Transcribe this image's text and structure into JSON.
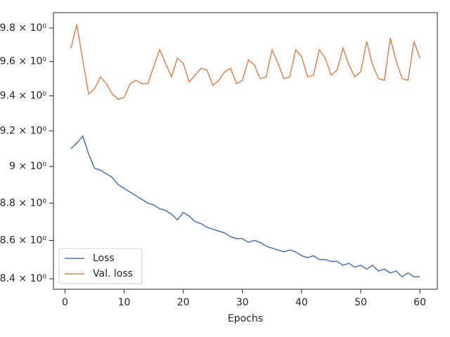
{
  "chart_data": {
    "type": "line",
    "x_label": "Epochs",
    "x": [
      1,
      2,
      3,
      4,
      5,
      6,
      7,
      8,
      9,
      10,
      11,
      12,
      13,
      14,
      15,
      16,
      17,
      18,
      19,
      20,
      21,
      22,
      23,
      24,
      25,
      26,
      27,
      28,
      29,
      30,
      31,
      32,
      33,
      34,
      35,
      36,
      37,
      38,
      39,
      40,
      41,
      42,
      43,
      44,
      45,
      46,
      47,
      48,
      49,
      50,
      51,
      52,
      53,
      54,
      55,
      56,
      57,
      58,
      59,
      60
    ],
    "series": [
      {
        "name": "Loss",
        "color": "#4c72b0",
        "values": [
          9.1,
          9.13,
          9.17,
          9.07,
          8.99,
          8.98,
          8.96,
          8.94,
          8.9,
          8.88,
          8.86,
          8.84,
          8.82,
          8.8,
          8.79,
          8.77,
          8.76,
          8.74,
          8.71,
          8.75,
          8.73,
          8.7,
          8.69,
          8.67,
          8.66,
          8.65,
          8.64,
          8.62,
          8.61,
          8.61,
          8.59,
          8.6,
          8.59,
          8.57,
          8.56,
          8.55,
          8.54,
          8.55,
          8.54,
          8.52,
          8.51,
          8.52,
          8.5,
          8.5,
          8.49,
          8.49,
          8.47,
          8.48,
          8.46,
          8.47,
          8.45,
          8.47,
          8.44,
          8.45,
          8.43,
          8.44,
          8.41,
          8.43,
          8.41,
          8.41
        ]
      },
      {
        "name": "Val. loss",
        "color": "#dd8452",
        "values": [
          9.68,
          9.82,
          9.61,
          9.41,
          9.44,
          9.51,
          9.47,
          9.41,
          9.38,
          9.39,
          9.47,
          9.49,
          9.47,
          9.47,
          9.57,
          9.67,
          9.59,
          9.51,
          9.62,
          9.59,
          9.48,
          9.52,
          9.56,
          9.55,
          9.46,
          9.49,
          9.54,
          9.56,
          9.47,
          9.49,
          9.61,
          9.58,
          9.5,
          9.51,
          9.67,
          9.59,
          9.5,
          9.51,
          9.67,
          9.63,
          9.51,
          9.52,
          9.67,
          9.62,
          9.52,
          9.55,
          9.68,
          9.58,
          9.51,
          9.54,
          9.72,
          9.58,
          9.5,
          9.49,
          9.74,
          9.6,
          9.5,
          9.49,
          9.72,
          9.62
        ]
      }
    ],
    "xlim": [
      -1.95,
      62.95
    ],
    "xticks": [
      0,
      10,
      20,
      30,
      40,
      50,
      60
    ],
    "ylim": [
      8.346,
      9.893
    ],
    "y_scale": "log",
    "yticks": [
      {
        "value": 8.4,
        "label": "8.4 × 10⁰"
      },
      {
        "value": 8.6,
        "label": "8.6 × 10⁰"
      },
      {
        "value": 8.8,
        "label": "8.8 × 10⁰"
      },
      {
        "value": 9,
        "label": "9 × 10⁰"
      },
      {
        "value": 9.2,
        "label": "9.2 × 10⁰"
      },
      {
        "value": 9.4,
        "label": "9.4 × 10⁰"
      },
      {
        "value": 9.6,
        "label": "9.6 × 10⁰"
      },
      {
        "value": 9.8,
        "label": "9.8 × 10⁰"
      }
    ],
    "legend": "lower left"
  }
}
